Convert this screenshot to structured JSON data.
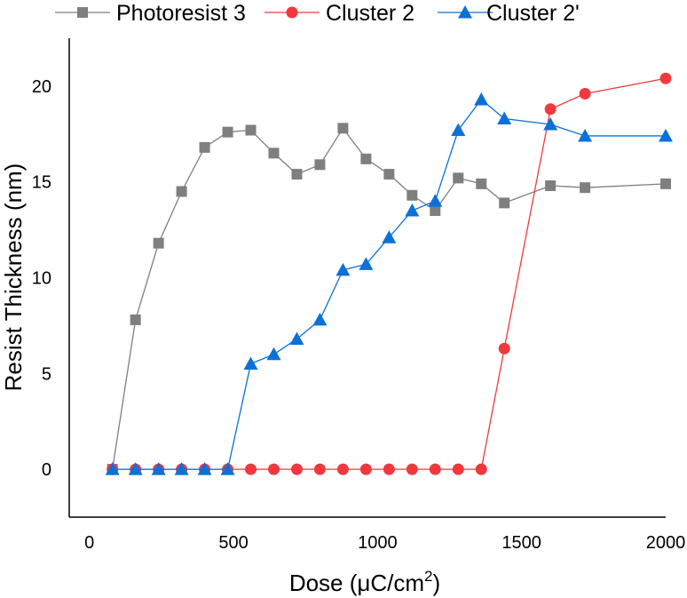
{
  "chart_data": {
    "type": "line",
    "title": "",
    "xlabel": "Dose (μC/cm",
    "xlabel_sup": "2",
    "xlabel_suffix": ")",
    "ylabel": "Resist Thickness (nm)",
    "xlim": [
      -70,
      2000
    ],
    "ylim": [
      -2.5,
      22.5
    ],
    "xticks": [
      0,
      500,
      1000,
      1500,
      2000
    ],
    "yticks": [
      0,
      5,
      10,
      15,
      20
    ],
    "grid": false,
    "legend_position": "top",
    "series": [
      {
        "name": "Photoresist 3",
        "color": "#7f7f7f",
        "marker": "square",
        "x": [
          80,
          160,
          240,
          320,
          400,
          480,
          560,
          640,
          720,
          800,
          880,
          960,
          1040,
          1120,
          1200,
          1280,
          1360,
          1440,
          1600,
          1720,
          2000
        ],
        "y": [
          0,
          7.8,
          11.8,
          14.5,
          16.8,
          17.6,
          17.7,
          16.5,
          15.4,
          15.9,
          17.8,
          16.2,
          15.4,
          14.3,
          13.5,
          15.2,
          14.9,
          13.9,
          14.8,
          14.7,
          14.9
        ]
      },
      {
        "name": "Cluster 2",
        "color": "#f0393e",
        "marker": "circle",
        "x": [
          80,
          160,
          240,
          320,
          400,
          480,
          560,
          640,
          720,
          800,
          880,
          960,
          1040,
          1120,
          1200,
          1280,
          1360,
          1440,
          1600,
          1720,
          2000
        ],
        "y": [
          0,
          0,
          0,
          0,
          0,
          0,
          0,
          0,
          0,
          0,
          0,
          0,
          0,
          0,
          0,
          0,
          0,
          6.3,
          18.8,
          19.6,
          20.4
        ]
      },
      {
        "name": "Cluster 2'",
        "color": "#0b71d8",
        "marker": "triangle",
        "x": [
          80,
          160,
          240,
          320,
          400,
          480,
          560,
          640,
          720,
          800,
          880,
          960,
          1040,
          1120,
          1200,
          1280,
          1360,
          1440,
          1600,
          1720,
          2000
        ],
        "y": [
          0,
          0,
          0,
          0,
          0,
          0,
          5.5,
          6.0,
          6.8,
          7.8,
          10.4,
          10.7,
          12.1,
          13.5,
          14.0,
          17.7,
          19.3,
          18.3,
          18.0,
          17.4,
          17.4
        ]
      }
    ]
  }
}
